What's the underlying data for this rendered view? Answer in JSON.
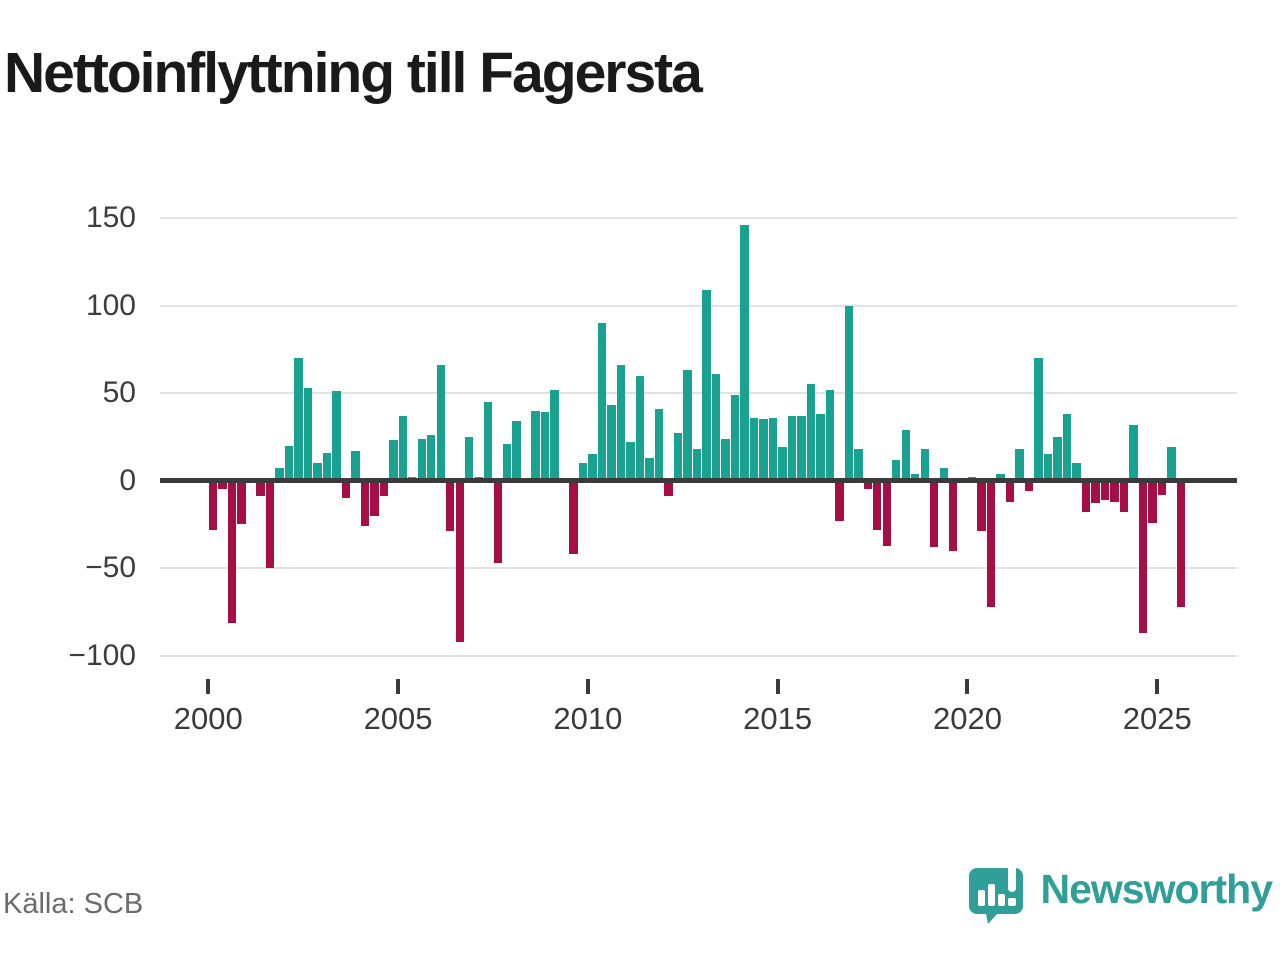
{
  "title": "Nettoinflyttning till Fagersta",
  "source": "Källa: SCB",
  "branding": {
    "logo_text": "Newsworthy",
    "logo_icon": "bar-chart-speech-bubble",
    "logo_color": "#2f9f97"
  },
  "colors": {
    "positive_bar": "#18a28f",
    "negative_bar": "#a60f45",
    "gridline": "#e2e2e2",
    "zero_axis": "#3a3a3a",
    "title_text": "#1a1a1a",
    "axis_text": "#3d3d3d",
    "source_text": "#6b6b6b"
  },
  "chart_data": {
    "type": "bar",
    "title": "Nettoinflyttning till Fagersta",
    "x_start": "2000 Q1",
    "x_end": "2025 Q3",
    "frequency": "quarterly",
    "values": [
      -28,
      -5,
      -81,
      -25,
      0,
      -9,
      -50,
      7,
      20,
      70,
      53,
      10,
      16,
      51,
      -10,
      17,
      -26,
      -20,
      -9,
      23,
      37,
      2,
      24,
      26,
      66,
      -29,
      -92,
      25,
      2,
      45,
      -47,
      21,
      34,
      1,
      40,
      39,
      52,
      0,
      -42,
      10,
      15,
      90,
      43,
      66,
      22,
      60,
      13,
      41,
      -9,
      27,
      63,
      18,
      109,
      61,
      24,
      49,
      146,
      36,
      35,
      36,
      19,
      37,
      37,
      55,
      38,
      52,
      -23,
      100,
      18,
      -5,
      -28,
      -37,
      12,
      29,
      4,
      18,
      -38,
      7,
      -40,
      1,
      2,
      -29,
      -72,
      4,
      -12,
      18,
      -6,
      70,
      15,
      25,
      38,
      10,
      -18,
      -13,
      -11,
      -12,
      -18,
      32,
      -87,
      -24,
      -8,
      19,
      -72
    ],
    "yticks": [
      150,
      100,
      50,
      0,
      -50,
      -100
    ],
    "ylim": [
      -100,
      150
    ],
    "xticks": [
      2000,
      2005,
      2010,
      2015,
      2020,
      2025
    ],
    "grid": true,
    "legend": false,
    "positive_color": "#18a28f",
    "negative_color": "#a60f45"
  }
}
